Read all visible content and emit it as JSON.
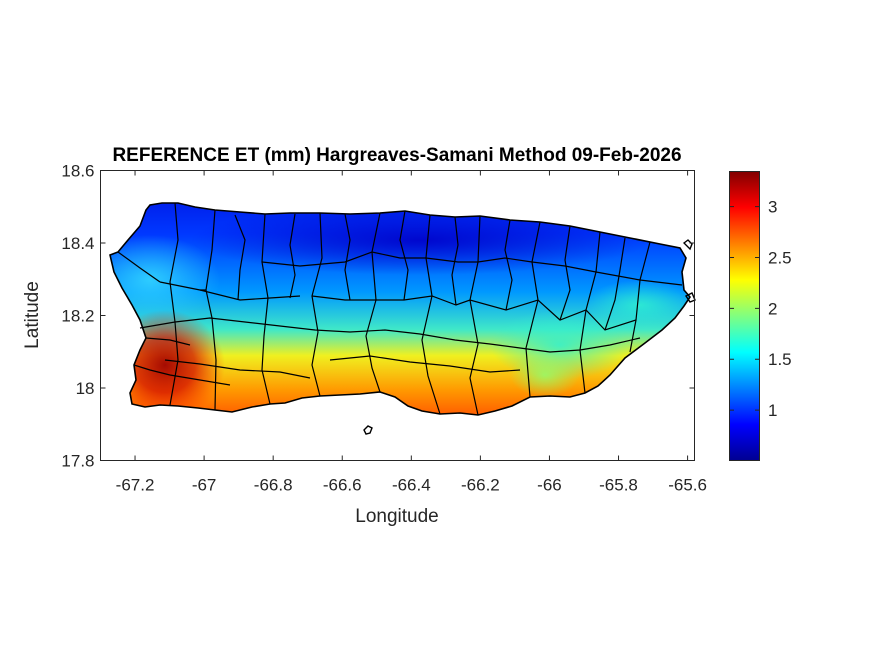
{
  "title": "REFERENCE ET (mm) Hargreaves-Samani Method  09-Feb-2026",
  "chart_data": {
    "type": "heatmap",
    "title": "REFERENCE ET (mm) Hargreaves-Samani Method  09-Feb-2026",
    "xlabel": "Longitude",
    "ylabel": "Latitude",
    "xlim": [
      -67.3,
      -65.58
    ],
    "ylim": [
      17.8,
      18.6
    ],
    "xticks": [
      -67.2,
      -67,
      -66.8,
      -66.6,
      -66.4,
      -66.2,
      -66,
      -65.8,
      -65.6
    ],
    "xtick_labels": [
      "-67.2",
      "-67",
      "-66.8",
      "-66.6",
      "-66.4",
      "-66.2",
      "-66",
      "-65.8",
      "-65.6"
    ],
    "yticks": [
      17.8,
      18,
      18.2,
      18.4,
      18.6
    ],
    "ytick_labels": [
      "17.8",
      "18",
      "18.2",
      "18.4",
      "18.6"
    ],
    "colormap": "jet",
    "colorbar": {
      "range": [
        0.5,
        3.35
      ],
      "ticks": [
        1,
        1.5,
        2,
        2.5,
        3
      ],
      "tick_labels": [
        "1",
        "1.5",
        "2",
        "2.5",
        "3"
      ],
      "placement": "right"
    },
    "field_pattern": "high ET (~2.5-3.3 mm) along south coast and southwest, low ET (~0.6-1.2 mm) across north and central interior",
    "overlay": "municipality boundaries (black)"
  },
  "colors": {
    "jet": [
      "#00008f",
      "#0000ff",
      "#0080ff",
      "#00ffff",
      "#80ff80",
      "#ffff00",
      "#ff8000",
      "#ff0000",
      "#800000"
    ],
    "boundary": "#000000",
    "axis": "#262626"
  }
}
